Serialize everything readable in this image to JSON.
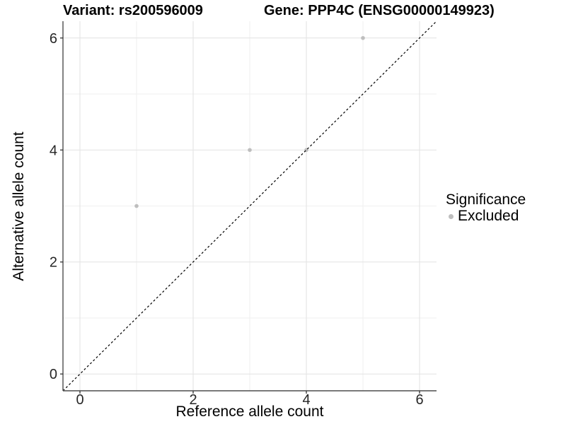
{
  "chart_data": {
    "type": "scatter",
    "title_left": "Variant: rs200596009",
    "title_right": "Gene: PPP4C (ENSG00000149923)",
    "xlabel": "Reference allele count",
    "ylabel": "Alternative allele count",
    "xlim": [
      -0.3,
      6.3
    ],
    "ylim": [
      -0.3,
      6.3
    ],
    "x_ticks": [
      0,
      2,
      4,
      6
    ],
    "y_ticks": [
      0,
      2,
      4,
      6
    ],
    "x_minor": [
      1,
      3,
      5
    ],
    "y_minor": [
      1,
      3,
      5
    ],
    "grid": "major-and-minor",
    "series": [
      {
        "name": "Excluded",
        "marker": "circle",
        "color": "#bebebe",
        "points": [
          [
            1,
            3
          ],
          [
            3,
            4
          ],
          [
            4,
            4
          ],
          [
            5,
            6
          ]
        ]
      }
    ],
    "reference_line": {
      "type": "identity y=x",
      "style": "dashed",
      "color": "#000000",
      "from": -0.3,
      "to": 6.3
    },
    "legend": {
      "title": "Significance",
      "position": "right",
      "items": [
        {
          "label": "Excluded",
          "color": "#bebebe"
        }
      ]
    },
    "colors": {
      "background": "#ffffff",
      "grid_major": "#e2e2e2",
      "grid_minor": "#efefef",
      "axis_line": "#4d4d4d",
      "tick": "#333333",
      "tick_label": "#262626",
      "point": "#bebebe"
    }
  }
}
